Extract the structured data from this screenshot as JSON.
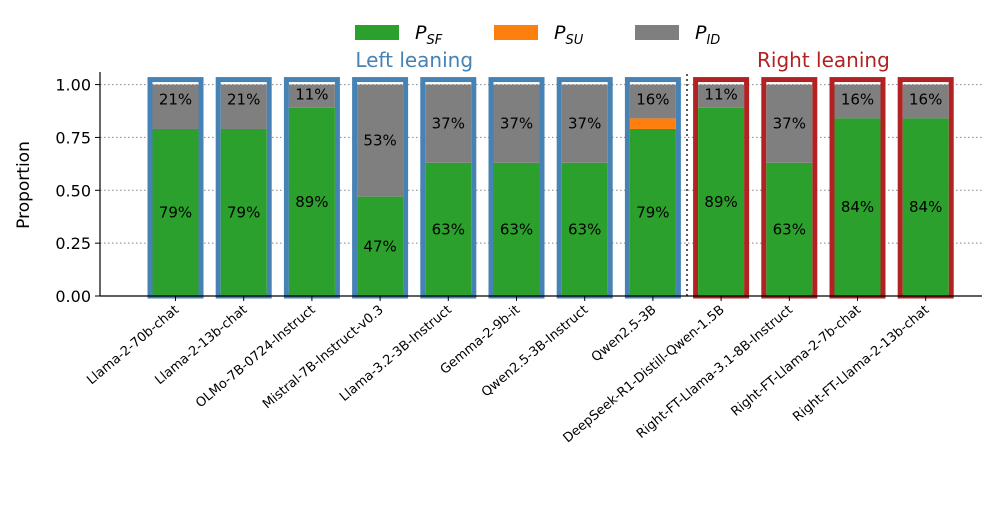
{
  "chart_data": {
    "type": "bar",
    "stacked": true,
    "ylabel": "Proportion",
    "ylim": [
      0,
      1.05
    ],
    "yticks": [
      "0.00",
      "0.25",
      "0.50",
      "0.75",
      "1.00"
    ],
    "ytick_values": [
      0,
      0.25,
      0.5,
      0.75,
      1.0
    ],
    "grid": "y-dotted",
    "categories": [
      "Llama-2-70b-chat",
      "Llama-2-13b-chat",
      "OLMo-7B-0724-Instruct",
      "Mistral-7B-Instruct-v0.3",
      "Llama-3.2-3B-Instruct",
      "Gemma-2-9b-it",
      "Qwen2.5-3B-Instruct",
      "Qwen2.5-3B",
      "DeepSeek-R1-Distill-Qwen-1.5B",
      "Right-FT-Llama-3.1-8B-Instruct",
      "Right-FT-Llama-2-7b-chat",
      "Right-FT-Llama-2-13b-chat"
    ],
    "series": [
      {
        "name": "P_SF",
        "color": "#2ca02c",
        "values": [
          0.79,
          0.79,
          0.89,
          0.47,
          0.63,
          0.63,
          0.63,
          0.79,
          0.89,
          0.63,
          0.84,
          0.84
        ]
      },
      {
        "name": "P_SU",
        "color": "#ff7f0e",
        "values": [
          0,
          0,
          0,
          0,
          0,
          0,
          0,
          0.05,
          0,
          0,
          0,
          0
        ]
      },
      {
        "name": "P_ID",
        "color": "#7f7f7f",
        "values": [
          0.21,
          0.21,
          0.11,
          0.53,
          0.37,
          0.37,
          0.37,
          0.16,
          0.11,
          0.37,
          0.16,
          0.16
        ]
      }
    ],
    "labels": {
      "P_SF": [
        "79%",
        "79%",
        "89%",
        "47%",
        "63%",
        "63%",
        "63%",
        "79%",
        "89%",
        "63%",
        "84%",
        "84%"
      ],
      "P_ID": [
        "21%",
        "21%",
        "11%",
        "53%",
        "37%",
        "37%",
        "37%",
        "16%",
        "11%",
        "37%",
        "16%",
        "16%"
      ]
    },
    "groups": [
      {
        "label": "Left leaning",
        "color": "#4682b4",
        "count": 8
      },
      {
        "label": "Right leaning",
        "color": "#b22222",
        "count": 4
      }
    ],
    "legend": {
      "placement": "top-center",
      "entries": [
        {
          "base": "P",
          "sub": "SF",
          "color": "#2ca02c"
        },
        {
          "base": "P",
          "sub": "SU",
          "color": "#ff7f0e"
        },
        {
          "base": "P",
          "sub": "ID",
          "color": "#7f7f7f"
        }
      ]
    }
  }
}
